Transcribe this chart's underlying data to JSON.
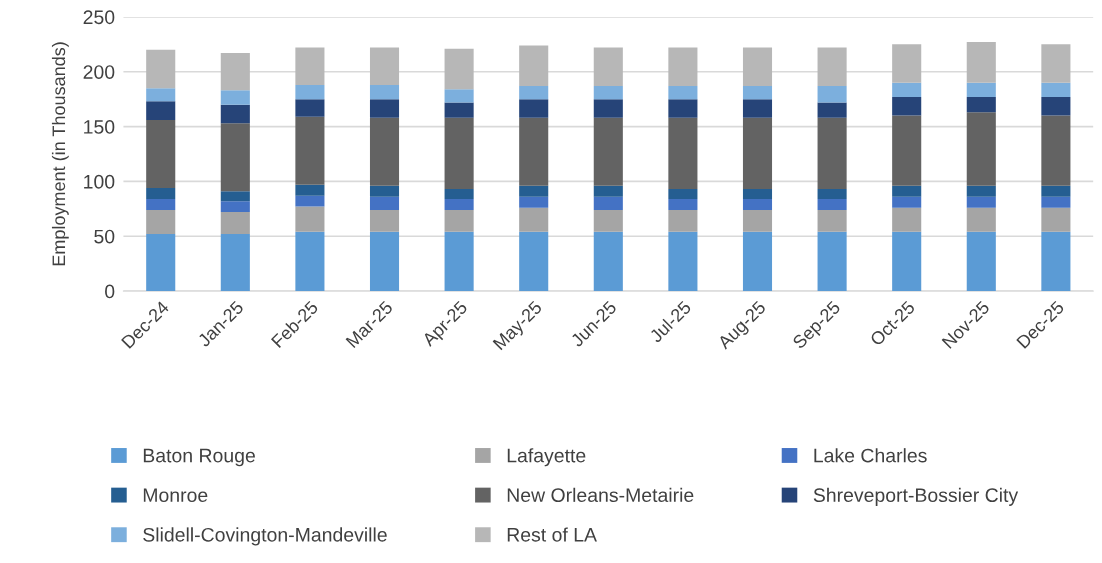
{
  "chart_data": {
    "type": "bar",
    "stacked": true,
    "ylabel": "Employment (in Thousands)",
    "categories": [
      "Dec-24",
      "Jan-25",
      "Feb-25",
      "Mar-25",
      "Apr-25",
      "May-25",
      "Jun-25",
      "Jul-25",
      "Aug-25",
      "Sep-25",
      "Oct-25",
      "Nov-25",
      "Dec-25"
    ],
    "series": [
      {
        "name": "Baton Rouge",
        "color": "#5b9bd5",
        "values": [
          52,
          52,
          54,
          54,
          54,
          54,
          54,
          54,
          54,
          54,
          54,
          54,
          54
        ]
      },
      {
        "name": "Lafayette",
        "color": "#a5a5a5",
        "values": [
          22,
          20,
          23,
          20,
          20,
          22,
          20,
          20,
          20,
          20,
          22,
          22,
          22
        ]
      },
      {
        "name": "Lake Charles",
        "color": "#4472c4",
        "values": [
          10,
          10,
          10,
          12,
          10,
          10,
          12,
          10,
          10,
          10,
          10,
          10,
          10
        ]
      },
      {
        "name": "Monroe",
        "color": "#255e91",
        "values": [
          10,
          9,
          10,
          10,
          9,
          10,
          10,
          9,
          9,
          9,
          10,
          10,
          10
        ]
      },
      {
        "name": "New Orleans-Metairie",
        "color": "#636363",
        "values": [
          62,
          62,
          62,
          62,
          65,
          62,
          62,
          65,
          65,
          65,
          64,
          67,
          64
        ]
      },
      {
        "name": "Shreveport-Bossier City",
        "color": "#264478",
        "values": [
          17,
          17,
          16,
          17,
          14,
          17,
          17,
          17,
          17,
          14,
          17,
          14,
          17
        ]
      },
      {
        "name": "Slidell-Covington-Mandeville",
        "color": "#7cafdd",
        "values": [
          12,
          13,
          13,
          13,
          12,
          12,
          12,
          12,
          12,
          15,
          13,
          13,
          13
        ]
      },
      {
        "name": "Rest of LA",
        "color": "#b7b7b7",
        "values": [
          35,
          34,
          34,
          34,
          37,
          37,
          35,
          35,
          35,
          35,
          35,
          37,
          35
        ]
      }
    ],
    "ylim": [
      0,
      250
    ],
    "yticks": [
      0,
      50,
      100,
      150,
      200,
      250
    ],
    "grid": "y",
    "legend": "bottom"
  }
}
